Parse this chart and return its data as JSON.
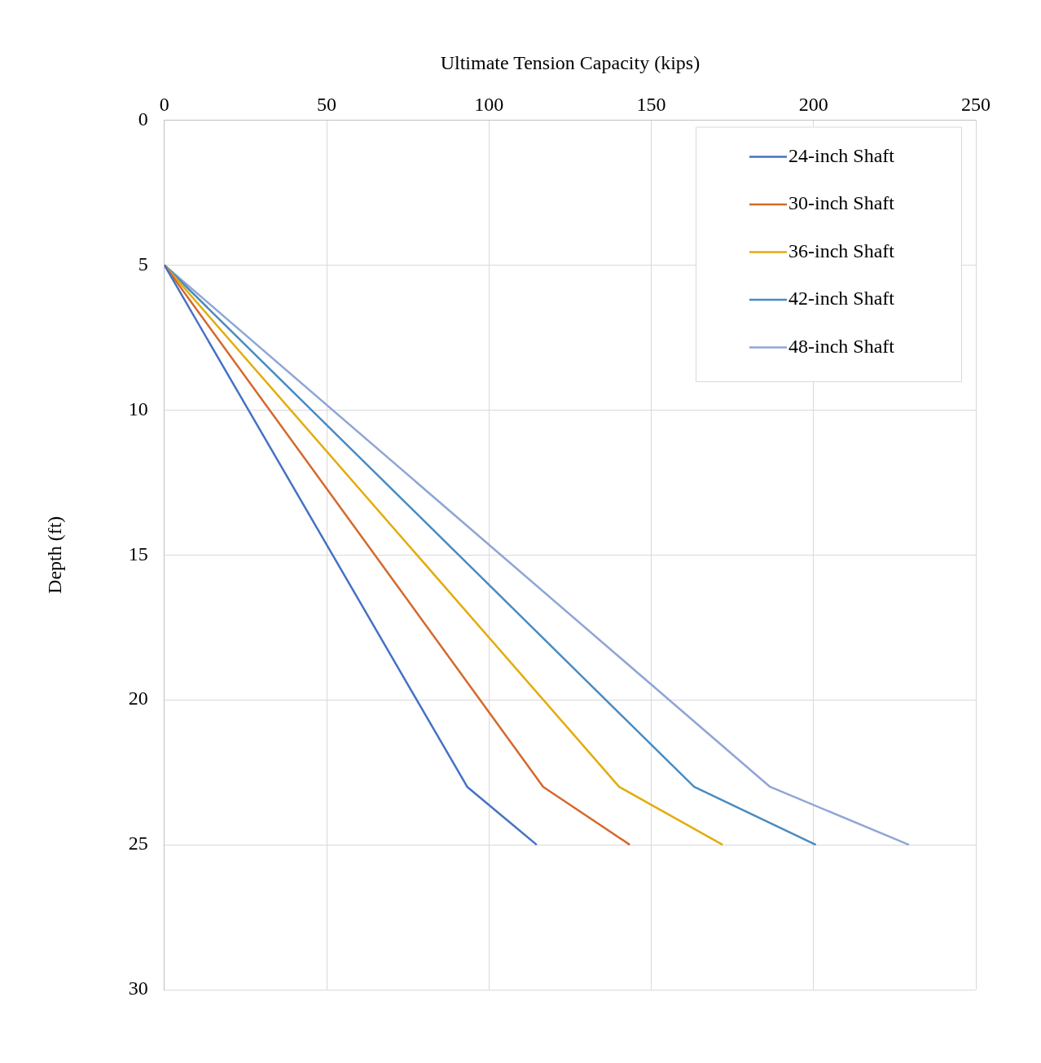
{
  "chart_data": {
    "type": "line",
    "xlabel": "Ultimate Tension Capacity (kips)",
    "ylabel": "Depth (ft)",
    "xlim": [
      0,
      250
    ],
    "xticks": [
      0,
      50,
      100,
      150,
      200,
      250
    ],
    "ylim": [
      30,
      0
    ],
    "yticks": [
      0,
      5,
      10,
      15,
      20,
      25,
      30
    ],
    "grid": true,
    "legend": "top right",
    "marker": "none",
    "line_style": "solid",
    "series": [
      {
        "name": "24-inch Shaft",
        "color": "#4472c4",
        "x": [
          0,
          93.3,
          114.7
        ],
        "values": [
          5,
          23,
          25
        ]
      },
      {
        "name": "30-inch Shaft",
        "color": "#d4692c",
        "x": [
          0,
          116.7,
          143.4
        ],
        "values": [
          5,
          23,
          25
        ]
      },
      {
        "name": "36-inch Shaft",
        "color": "#e3ac0c",
        "x": [
          0,
          140.1,
          172.0
        ],
        "values": [
          5,
          23,
          25
        ]
      },
      {
        "name": "42-inch Shaft",
        "color": "#4a8bc0",
        "x": [
          0,
          163.2,
          200.7
        ],
        "values": [
          5,
          23,
          25
        ]
      },
      {
        "name": "48-inch Shaft",
        "color": "#8fa6d6",
        "x": [
          0,
          186.6,
          229.4
        ],
        "values": [
          5,
          23,
          25
        ]
      }
    ]
  }
}
